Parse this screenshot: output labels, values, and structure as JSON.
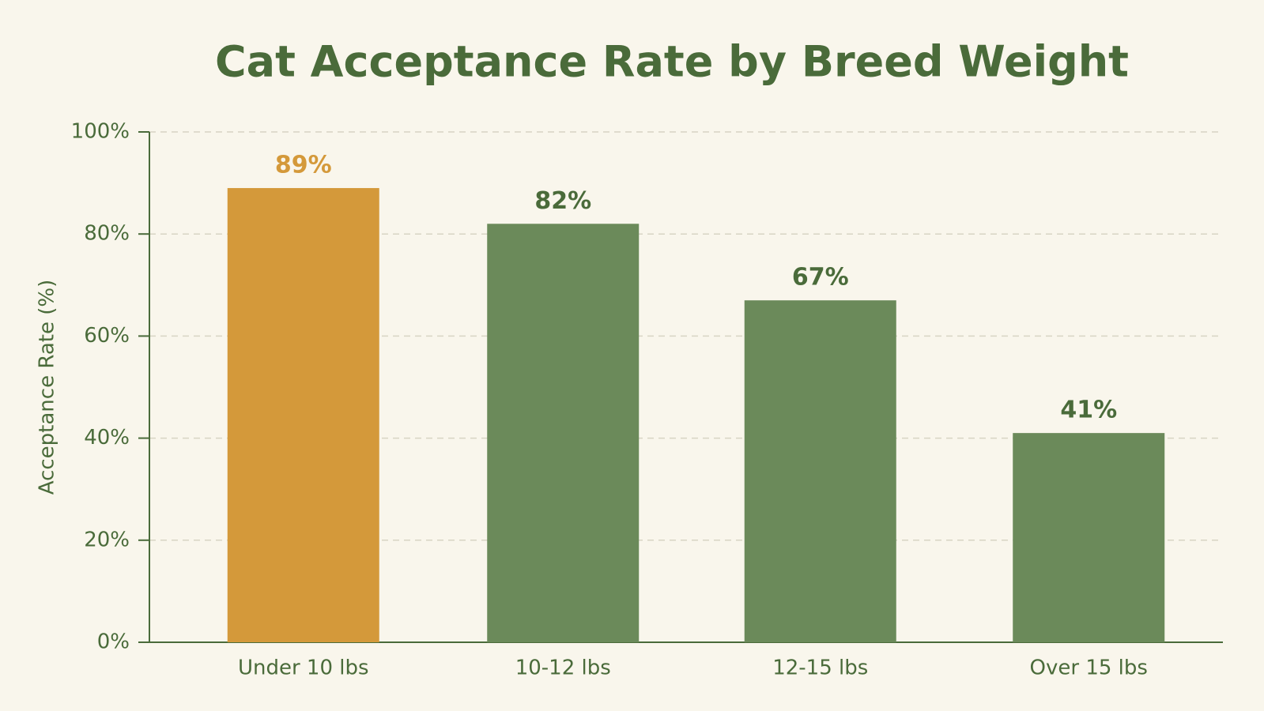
{
  "chart_data": {
    "type": "bar",
    "title": "Cat Acceptance Rate by Breed Weight",
    "y_label": "Acceptance Rate (%)",
    "categories": [
      "Under 10 lbs",
      "10-12 lbs",
      "12-15 lbs",
      "Over 15 lbs"
    ],
    "values": [
      89,
      82,
      67,
      41
    ],
    "value_labels": [
      "89%",
      "82%",
      "67%",
      "41%"
    ],
    "colors": [
      "#d4993a",
      "#6b8a5a",
      "#6b8a5a",
      "#6b8a5a"
    ],
    "label_colors": [
      "#d4993a",
      "#4a6b3a",
      "#4a6b3a",
      "#4a6b3a"
    ],
    "ylim": [
      0,
      100
    ],
    "yticks": [
      {
        "value": 0,
        "label": "0%"
      },
      {
        "value": 20,
        "label": "20%"
      },
      {
        "value": 40,
        "label": "40%"
      },
      {
        "value": 60,
        "label": "60%"
      },
      {
        "value": 80,
        "label": "80%"
      },
      {
        "value": 100,
        "label": "100%"
      }
    ],
    "grid": true
  }
}
